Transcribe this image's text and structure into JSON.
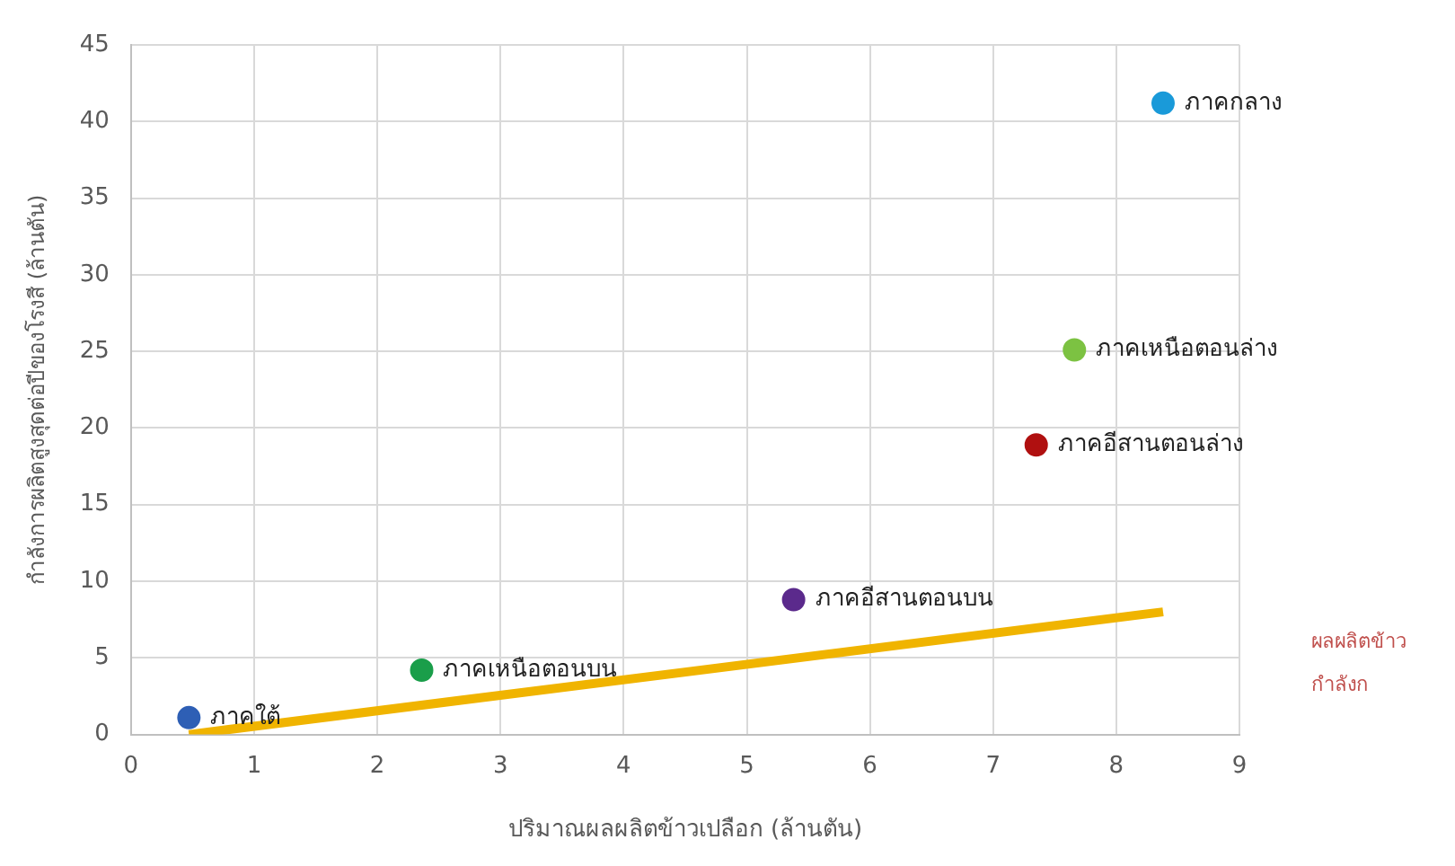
{
  "chart_data": {
    "type": "scatter",
    "xlabel": "ปริมาณผลผลิตข้าวเปลือก (ล้านตัน)",
    "ylabel": "กำลังการผลิตสูงสุดต่อปีของโรงสี (ล้านตัน)",
    "xlim": [
      0,
      9
    ],
    "xticks": [
      0,
      1,
      2,
      3,
      4,
      5,
      6,
      7,
      8,
      9
    ],
    "ylim": [
      0,
      45
    ],
    "yticks": [
      0,
      5,
      10,
      15,
      20,
      25,
      30,
      35,
      40,
      45
    ],
    "grid": true,
    "legend": false,
    "series": [
      {
        "name": "ภาคใต้",
        "color": "#2e5fb5",
        "marker": "circle",
        "x": [
          0.47
        ],
        "values": [
          1.1
        ]
      },
      {
        "name": "ภาคเหนือตอนบน",
        "color": "#1a9e4a",
        "marker": "circle",
        "x": [
          2.36
        ],
        "values": [
          4.2
        ]
      },
      {
        "name": "ภาคอีสานตอนบน",
        "color": "#5b2a8c",
        "marker": "circle",
        "x": [
          5.38
        ],
        "values": [
          8.8
        ]
      },
      {
        "name": "ภาคอีสานตอนล่าง",
        "color": "#b01010",
        "marker": "circle",
        "x": [
          7.35
        ],
        "values": [
          18.9
        ]
      },
      {
        "name": "ภาคเหนือตอนล่าง",
        "color": "#7cc242",
        "marker": "circle",
        "x": [
          7.66
        ],
        "values": [
          25.1
        ]
      },
      {
        "name": "ภาคกลาง",
        "color": "#1a9ad9",
        "marker": "circle",
        "x": [
          8.38
        ],
        "values": [
          41.2
        ]
      },
      {
        "type": "line",
        "color": "#f0b400",
        "marker": "none",
        "x": [
          0.47,
          8.38
        ],
        "values": [
          0,
          8
        ]
      }
    ],
    "annotations": [
      "ผลผลิตข้าว",
      "กำลังก"
    ]
  }
}
